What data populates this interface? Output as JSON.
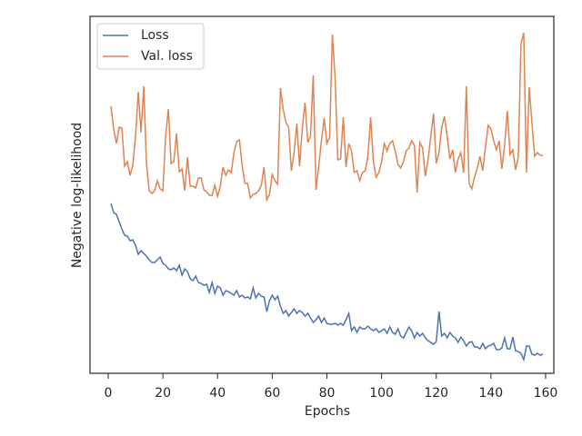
{
  "chart_data": {
    "type": "line",
    "xlabel": "Epochs",
    "ylabel": "Negative log-likelihood",
    "x": [
      1,
      2,
      3,
      4,
      5,
      6,
      7,
      8,
      9,
      10,
      11,
      12,
      13,
      14,
      15,
      16,
      17,
      18,
      19,
      20,
      21,
      22,
      23,
      24,
      25,
      26,
      27,
      28,
      29,
      30,
      31,
      32,
      33,
      34,
      35,
      36,
      37,
      38,
      39,
      40,
      41,
      42,
      43,
      44,
      45,
      46,
      47,
      48,
      49,
      50,
      51,
      52,
      53,
      54,
      55,
      56,
      57,
      58,
      59,
      60,
      61,
      62,
      63,
      64,
      65,
      66,
      67,
      68,
      69,
      70,
      71,
      72,
      73,
      74,
      75,
      76,
      77,
      78,
      79,
      80,
      81,
      82,
      83,
      84,
      85,
      86,
      87,
      88,
      89,
      90,
      91,
      92,
      93,
      94,
      95,
      96,
      97,
      98,
      99,
      100,
      101,
      102,
      103,
      104,
      105,
      106,
      107,
      108,
      109,
      110,
      111,
      112,
      113,
      114,
      115,
      116,
      117,
      118,
      119,
      120,
      121,
      122,
      123,
      124,
      125,
      126,
      127,
      128,
      129,
      130,
      131,
      132,
      133,
      134,
      135,
      136,
      137,
      138,
      139,
      140,
      141,
      142,
      143,
      144,
      145,
      146,
      147,
      148,
      149,
      150,
      151,
      152,
      153,
      154,
      155,
      156,
      157,
      158,
      159
    ],
    "series": [
      {
        "name": "Loss",
        "color": "#4c72b0",
        "values": [
          187,
          177,
          175,
          167,
          159,
          152,
          151,
          146,
          147,
          141,
          131,
          135,
          132,
          129,
          125,
          122,
          122,
          125,
          128,
          121,
          119,
          115,
          114,
          116,
          113,
          119,
          108,
          115,
          112,
          104,
          102,
          107,
          100,
          99,
          97,
          98,
          89,
          100,
          88,
          96,
          94,
          86,
          91,
          90,
          88,
          86,
          91,
          84,
          86,
          83,
          84,
          82,
          94,
          83,
          88,
          85,
          84,
          68,
          80,
          86,
          81,
          85,
          74,
          66,
          69,
          63,
          67,
          71,
          66,
          69,
          67,
          63,
          66,
          61,
          56,
          59,
          63,
          56,
          61,
          55,
          54,
          54,
          55,
          53,
          55,
          53,
          59,
          66,
          47,
          51,
          45,
          51,
          49,
          49,
          52,
          49,
          47,
          49,
          45,
          47,
          49,
          44,
          51,
          45,
          43,
          49,
          41,
          39,
          45,
          51,
          47,
          39,
          45,
          41,
          44,
          39,
          36,
          34,
          32,
          35,
          68,
          41,
          44,
          39,
          45,
          41,
          39,
          34,
          40,
          36,
          30,
          34,
          35,
          29,
          29,
          27,
          33,
          27,
          30,
          31,
          33,
          26,
          26,
          28,
          39,
          27,
          27,
          40,
          25,
          24,
          22,
          15,
          30,
          30,
          21,
          20,
          22,
          20,
          21
        ]
      },
      {
        "name": "Val. loss",
        "color": "#dd8452",
        "values": [
          294,
          269,
          253,
          271,
          270,
          228,
          233,
          218,
          229,
          261,
          310,
          265,
          316,
          231,
          201,
          198,
          201,
          212,
          203,
          201,
          261,
          291,
          231,
          233,
          264,
          222,
          225,
          201,
          238,
          206,
          206,
          204,
          215,
          215,
          202,
          200,
          196,
          196,
          207,
          195,
          206,
          227,
          218,
          224,
          221,
          243,
          255,
          257,
          229,
          209,
          209,
          193,
          197,
          198,
          201,
          207,
          227,
          191,
          197,
          219,
          212,
          208,
          314,
          291,
          276,
          271,
          223,
          243,
          275,
          228,
          270,
          298,
          254,
          261,
          328,
          202,
          228,
          256,
          281,
          253,
          260,
          373,
          326,
          235,
          236,
          282,
          227,
          253,
          245,
          221,
          223,
          212,
          221,
          223,
          239,
          282,
          233,
          216,
          221,
          233,
          253,
          245,
          253,
          256,
          245,
          230,
          226,
          233,
          245,
          248,
          256,
          251,
          199,
          254,
          248,
          217,
          235,
          261,
          286,
          231,
          243,
          271,
          283,
          261,
          236,
          246,
          221,
          236,
          243,
          221,
          316,
          209,
          203,
          216,
          226,
          239,
          223,
          249,
          273,
          269,
          256,
          246,
          256,
          225,
          251,
          289,
          241,
          246,
          224,
          238,
          363,
          375,
          221,
          315,
          276,
          239,
          243,
          240,
          240
        ]
      }
    ],
    "xlim": [
      -6.65,
      163
    ],
    "xticks": [
      0,
      20,
      40,
      60,
      80,
      100,
      120,
      140,
      160
    ],
    "ylim": [
      0,
      393
    ],
    "legend": "upper left"
  }
}
